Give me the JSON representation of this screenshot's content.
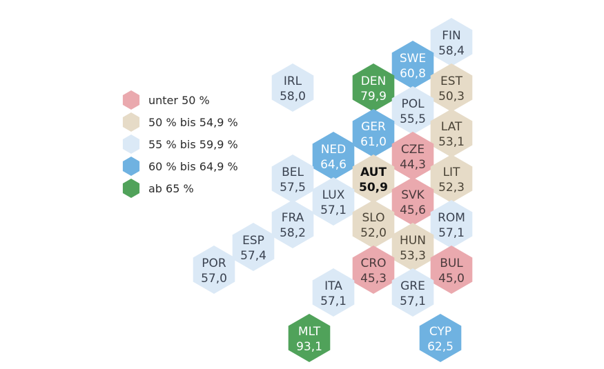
{
  "legend": {
    "items": [
      {
        "key": "lt50",
        "label": "unter 50 %",
        "color": "#eaa9ae"
      },
      {
        "key": "50_549",
        "label": "50 % bis 54,9 %",
        "color": "#e6dbc7"
      },
      {
        "key": "55_599",
        "label": "55 % bis 59,9 %",
        "color": "#dbe9f6"
      },
      {
        "key": "60_649",
        "label": "60 % bis 64,9 %",
        "color": "#6fb2e1"
      },
      {
        "key": "ge65",
        "label": "ab 65 %",
        "color": "#50a25a"
      }
    ]
  },
  "countries": [
    {
      "code": "FIN",
      "value": "58,4",
      "category": "55_599"
    },
    {
      "code": "SWE",
      "value": "60,8",
      "category": "60_649"
    },
    {
      "code": "IRL",
      "value": "58,0",
      "category": "55_599"
    },
    {
      "code": "DEN",
      "value": "79,9",
      "category": "ge65"
    },
    {
      "code": "EST",
      "value": "50,3",
      "category": "50_549"
    },
    {
      "code": "POL",
      "value": "55,5",
      "category": "55_599"
    },
    {
      "code": "GER",
      "value": "61,0",
      "category": "60_649"
    },
    {
      "code": "LAT",
      "value": "53,1",
      "category": "50_549"
    },
    {
      "code": "NED",
      "value": "64,6",
      "category": "60_649"
    },
    {
      "code": "CZE",
      "value": "44,3",
      "category": "lt50"
    },
    {
      "code": "BEL",
      "value": "57,5",
      "category": "55_599"
    },
    {
      "code": "AUT",
      "value": "50,9",
      "category": "50_549",
      "highlight": true
    },
    {
      "code": "LIT",
      "value": "52,3",
      "category": "50_549"
    },
    {
      "code": "LUX",
      "value": "57,1",
      "category": "55_599"
    },
    {
      "code": "SVK",
      "value": "45,6",
      "category": "lt50"
    },
    {
      "code": "FRA",
      "value": "58,2",
      "category": "55_599"
    },
    {
      "code": "SLO",
      "value": "52,0",
      "category": "50_549"
    },
    {
      "code": "ROM",
      "value": "57,1",
      "category": "55_599"
    },
    {
      "code": "ESP",
      "value": "57,4",
      "category": "55_599"
    },
    {
      "code": "HUN",
      "value": "53,3",
      "category": "50_549"
    },
    {
      "code": "POR",
      "value": "57,0",
      "category": "55_599"
    },
    {
      "code": "CRO",
      "value": "45,3",
      "category": "lt50"
    },
    {
      "code": "BUL",
      "value": "45,0",
      "category": "lt50"
    },
    {
      "code": "ITA",
      "value": "57,1",
      "category": "55_599"
    },
    {
      "code": "GRE",
      "value": "57,1",
      "category": "55_599"
    },
    {
      "code": "MLT",
      "value": "93,1",
      "category": "ge65"
    },
    {
      "code": "CYP",
      "value": "62,5",
      "category": "60_649"
    }
  ]
}
